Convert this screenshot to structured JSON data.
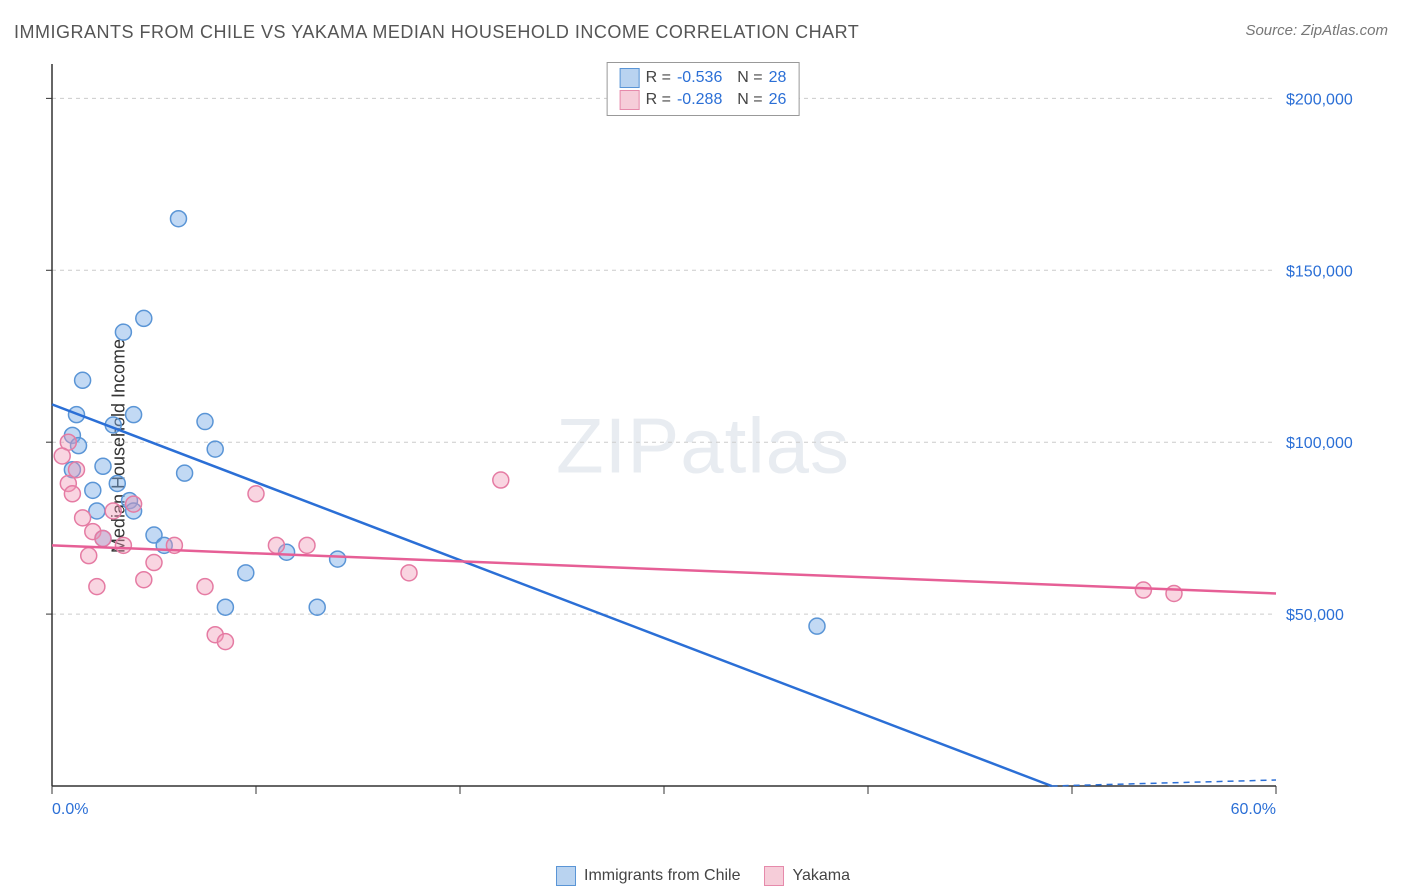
{
  "title": "IMMIGRANTS FROM CHILE VS YAKAMA MEDIAN HOUSEHOLD INCOME CORRELATION CHART",
  "source": "Source: ZipAtlas.com",
  "ylabel": "Median Household Income",
  "watermark_zip": "ZIP",
  "watermark_atlas": "atlas",
  "chart": {
    "type": "scatter",
    "background_color": "#ffffff",
    "grid_color": "#cccccc",
    "axis_color": "#333333",
    "xlim": [
      0,
      60
    ],
    "ylim": [
      0,
      210000
    ],
    "x_ticks": [
      0,
      10,
      20,
      30,
      40,
      50,
      60
    ],
    "x_tick_labels_shown": {
      "0": "0.0%",
      "60": "60.0%"
    },
    "y_gridlines": [
      50000,
      100000,
      150000,
      200000
    ],
    "y_tick_labels": {
      "50000": "$50,000",
      "100000": "$100,000",
      "150000": "$150,000",
      "200000": "$200,000"
    },
    "x_label_color": "#2b6fd6",
    "y_label_color": "#2b6fd6",
    "x_label_fontsize": 16,
    "y_label_fontsize": 16,
    "marker_radius": 8,
    "marker_stroke_width": 1.5,
    "trend_line_width": 2.5
  },
  "series": [
    {
      "name": "Immigrants from Chile",
      "fill": "rgba(120,170,230,0.45)",
      "stroke": "#5a95d6",
      "swatch_fill": "#b9d3f0",
      "swatch_border": "#5a95d6",
      "trend_color": "#2b6fd6",
      "R": "-0.536",
      "N": "28",
      "trend": {
        "x1": 0,
        "y1": 111000,
        "x2": 49,
        "y2": 0,
        "dash_from_x": 49,
        "dash_to_x": 60
      },
      "points": [
        [
          1.2,
          108000
        ],
        [
          1.0,
          102000
        ],
        [
          1.5,
          118000
        ],
        [
          1.3,
          99000
        ],
        [
          1.0,
          92000
        ],
        [
          4.5,
          136000
        ],
        [
          3.5,
          132000
        ],
        [
          6.2,
          165000
        ],
        [
          3.0,
          105000
        ],
        [
          4.0,
          108000
        ],
        [
          2.5,
          93000
        ],
        [
          3.2,
          88000
        ],
        [
          2.0,
          86000
        ],
        [
          2.2,
          80000
        ],
        [
          3.8,
          83000
        ],
        [
          7.5,
          106000
        ],
        [
          8.0,
          98000
        ],
        [
          6.5,
          91000
        ],
        [
          5.0,
          73000
        ],
        [
          5.5,
          70000
        ],
        [
          8.5,
          52000
        ],
        [
          14.0,
          66000
        ],
        [
          11.5,
          68000
        ],
        [
          9.5,
          62000
        ],
        [
          13.0,
          52000
        ],
        [
          37.5,
          46500
        ],
        [
          4.0,
          80000
        ],
        [
          2.5,
          72000
        ]
      ]
    },
    {
      "name": "Yakama",
      "fill": "rgba(240,150,180,0.40)",
      "stroke": "#e57ba3",
      "swatch_fill": "#f6cdd9",
      "swatch_border": "#e68aab",
      "trend_color": "#e65f96",
      "R": "-0.288",
      "N": "26",
      "trend": {
        "x1": 0,
        "y1": 70000,
        "x2": 60,
        "y2": 56000
      },
      "points": [
        [
          0.8,
          100000
        ],
        [
          0.5,
          96000
        ],
        [
          0.8,
          88000
        ],
        [
          1.2,
          92000
        ],
        [
          1.0,
          85000
        ],
        [
          1.5,
          78000
        ],
        [
          2.0,
          74000
        ],
        [
          2.5,
          72000
        ],
        [
          3.5,
          70000
        ],
        [
          1.8,
          67000
        ],
        [
          4.0,
          82000
        ],
        [
          5.0,
          65000
        ],
        [
          6.0,
          70000
        ],
        [
          4.5,
          60000
        ],
        [
          3.0,
          80000
        ],
        [
          7.5,
          58000
        ],
        [
          8.0,
          44000
        ],
        [
          8.5,
          42000
        ],
        [
          11.0,
          70000
        ],
        [
          12.5,
          70000
        ],
        [
          10.0,
          85000
        ],
        [
          17.5,
          62000
        ],
        [
          22.0,
          89000
        ],
        [
          53.5,
          57000
        ],
        [
          55.0,
          56000
        ],
        [
          2.2,
          58000
        ]
      ]
    }
  ],
  "legend_bottom": [
    {
      "label": "Immigrants from Chile",
      "series_index": 0
    },
    {
      "label": "Yakama",
      "series_index": 1
    }
  ]
}
